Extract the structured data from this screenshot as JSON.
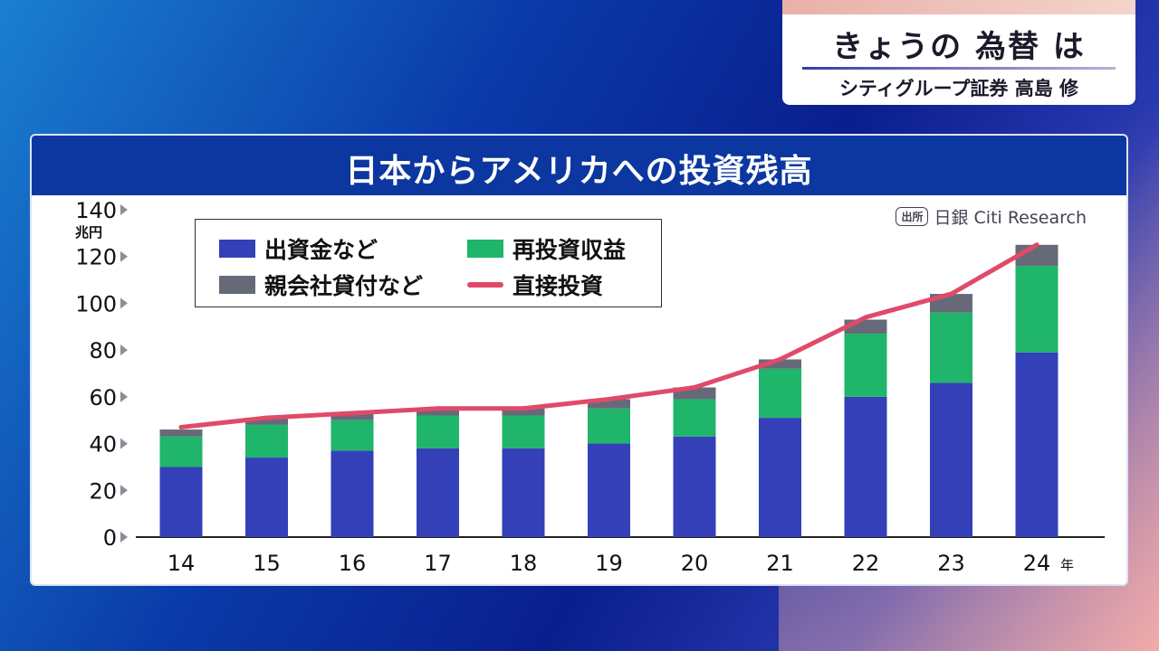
{
  "header": {
    "title": "きょうの 為替 は",
    "subtitle": "シティグループ証券 高島 修"
  },
  "panel": {
    "title": "日本からアメリカへの投資残高",
    "source_badge": "出所",
    "source_text": "日銀 Citi Research"
  },
  "colors": {
    "equity": "#3340b8",
    "reinvest": "#1fb56a",
    "loans": "#666a78",
    "direct": "#e04a68"
  },
  "chart_data": {
    "type": "bar",
    "stacked": true,
    "categories": [
      "14",
      "15",
      "16",
      "17",
      "18",
      "19",
      "20",
      "21",
      "22",
      "23",
      "24"
    ],
    "x_unit": "年",
    "y_unit": "兆円",
    "ylim": [
      0,
      140
    ],
    "yticks": [
      0,
      20,
      40,
      60,
      80,
      100,
      120,
      140
    ],
    "legend_position": "top-left",
    "series": [
      {
        "name": "出資金など",
        "key": "equity",
        "values": [
          30,
          34,
          37,
          38,
          38,
          40,
          43,
          51,
          60,
          66,
          79
        ]
      },
      {
        "name": "再投資収益",
        "key": "reinvest",
        "values": [
          13,
          14,
          13,
          14,
          14,
          15,
          16,
          21,
          27,
          30,
          37
        ]
      },
      {
        "name": "親会社貸付など",
        "key": "loans",
        "values": [
          3,
          3,
          3,
          3,
          3,
          4,
          5,
          4,
          6,
          8,
          9
        ]
      }
    ],
    "line": {
      "name": "直接投資",
      "key": "direct",
      "values": [
        47,
        51,
        53,
        55,
        55,
        59,
        64,
        76,
        94,
        104,
        125
      ]
    }
  }
}
